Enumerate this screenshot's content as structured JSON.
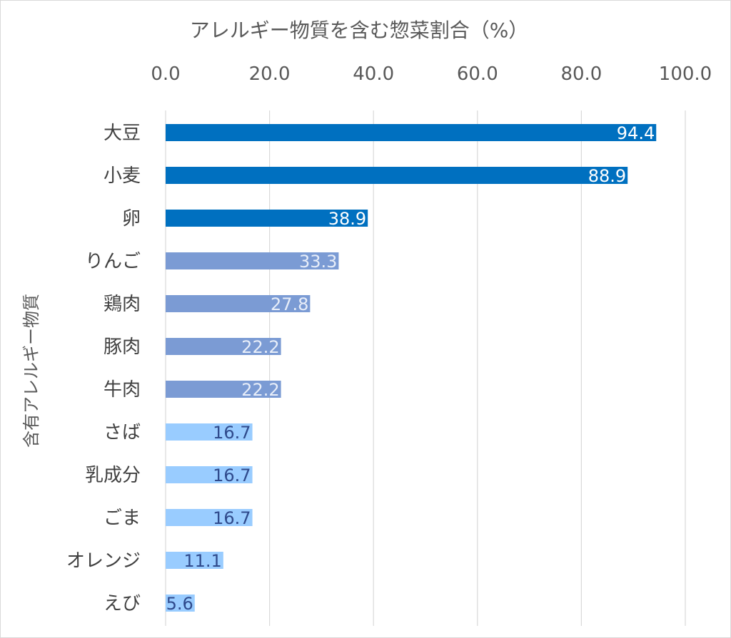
{
  "chart_data": {
    "type": "bar",
    "orientation": "horizontal",
    "title": "アレルギー物質を含む惣菜割合（%）",
    "xlabel": "アレルギー物質を含む惣菜割合（%）",
    "ylabel": "含有アレルギー物質",
    "xlim": [
      0,
      100
    ],
    "x_ticks": [
      "0.0",
      "20.0",
      "40.0",
      "60.0",
      "80.0",
      "100.0"
    ],
    "x_axis_position": "top",
    "gridlines": true,
    "categories": [
      "大豆",
      "小麦",
      "卵",
      "りんご",
      "鶏肉",
      "豚肉",
      "牛肉",
      "さば",
      "乳成分",
      "ごま",
      "オレンジ",
      "えび"
    ],
    "values": [
      94.4,
      88.9,
      38.9,
      33.3,
      27.8,
      22.2,
      22.2,
      16.7,
      16.7,
      16.7,
      11.1,
      5.6
    ],
    "value_labels": [
      "94.4",
      "88.9",
      "38.9",
      "33.3",
      "27.8",
      "22.2",
      "22.2",
      "16.7",
      "16.7",
      "16.7",
      "11.1",
      "5.6"
    ],
    "bar_tiers": [
      "dark",
      "dark",
      "dark",
      "mid",
      "mid",
      "mid",
      "mid",
      "light",
      "light",
      "light",
      "light",
      "light"
    ],
    "colors": {
      "dark": "#0070C0",
      "mid": "#7B9BD4",
      "light": "#99CCFF",
      "dark_label": "#FFFFFF",
      "mid_label": "#E8EEF9",
      "light_label": "#2F4A8C",
      "grid": "#D9D9D9"
    }
  }
}
